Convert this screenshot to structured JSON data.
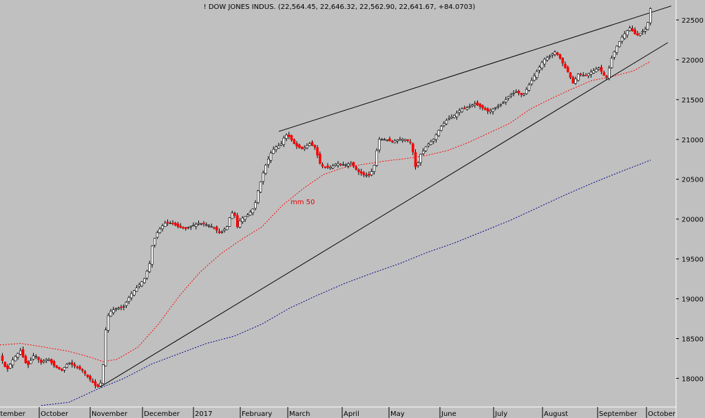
{
  "title": "! DOW JONES INDUS. (22,564.45, 22,646.32, 22,562.90, 22,641.67, +84.0703)",
  "colors": {
    "background": "#c0c0c0",
    "up_candle": "#ffffff",
    "down_candle": "#ff0000",
    "ma50": "#ff0000",
    "ma200": "#00008b",
    "trendline": "#000000"
  },
  "chart_data": {
    "type": "candlestick",
    "title": "! DOW JONES INDUS. (22,564.45, 22,646.32, 22,562.90, 22,641.67, +84.0703)",
    "ylim": [
      17650,
      22750
    ],
    "y_ticks": [
      "22500",
      "22000",
      "21500",
      "21000",
      "20500",
      "20000",
      "19500",
      "19000",
      "18500",
      "18000"
    ],
    "month_labels": [
      "ptember",
      "October",
      "November",
      "December",
      "2017",
      "February",
      "March",
      "April",
      "May",
      "June",
      "July",
      "August",
      "September",
      "October"
    ],
    "grid": false,
    "series": [
      {
        "kind": "price",
        "points": [
          [
            0,
            18300
          ],
          [
            10,
            18100
          ],
          [
            20,
            18250
          ],
          [
            30,
            18350
          ],
          [
            40,
            18150
          ],
          [
            50,
            18300
          ],
          [
            60,
            18200
          ],
          [
            70,
            18250
          ],
          [
            80,
            18150
          ],
          [
            90,
            18100
          ],
          [
            100,
            18200
          ],
          [
            110,
            18150
          ],
          [
            120,
            18100
          ],
          [
            130,
            18000
          ],
          [
            140,
            17900
          ],
          [
            145,
            17890
          ],
          [
            148,
            18000
          ],
          [
            150,
            18150
          ],
          [
            152,
            18450
          ],
          [
            155,
            18700
          ],
          [
            158,
            18800
          ],
          [
            162,
            18850
          ],
          [
            170,
            18880
          ],
          [
            180,
            18900
          ],
          [
            190,
            19050
          ],
          [
            200,
            19150
          ],
          [
            210,
            19250
          ],
          [
            218,
            19450
          ],
          [
            222,
            19700
          ],
          [
            230,
            19850
          ],
          [
            235,
            19900
          ],
          [
            240,
            19950
          ],
          [
            250,
            19950
          ],
          [
            260,
            19900
          ],
          [
            270,
            19880
          ],
          [
            280,
            19920
          ],
          [
            290,
            19950
          ],
          [
            300,
            19930
          ],
          [
            310,
            19900
          ],
          [
            320,
            19820
          ],
          [
            330,
            19900
          ],
          [
            335,
            20050
          ],
          [
            340,
            20100
          ],
          [
            345,
            19900
          ],
          [
            350,
            20000
          ],
          [
            360,
            20050
          ],
          [
            370,
            20150
          ],
          [
            375,
            20350
          ],
          [
            380,
            20500
          ],
          [
            385,
            20650
          ],
          [
            390,
            20750
          ],
          [
            395,
            20850
          ],
          [
            400,
            20900
          ],
          [
            405,
            20920
          ],
          [
            410,
            20950
          ],
          [
            414,
            21050
          ],
          [
            418,
            21060
          ],
          [
            425,
            20980
          ],
          [
            430,
            20920
          ],
          [
            440,
            20880
          ],
          [
            450,
            20950
          ],
          [
            458,
            20900
          ],
          [
            465,
            20700
          ],
          [
            470,
            20650
          ],
          [
            480,
            20650
          ],
          [
            490,
            20700
          ],
          [
            500,
            20680
          ],
          [
            510,
            20700
          ],
          [
            520,
            20600
          ],
          [
            530,
            20550
          ],
          [
            538,
            20550
          ],
          [
            545,
            20700
          ],
          [
            550,
            21000
          ],
          [
            560,
            21000
          ],
          [
            570,
            20970
          ],
          [
            580,
            21000
          ],
          [
            590,
            21000
          ],
          [
            598,
            20950
          ],
          [
            605,
            20600
          ],
          [
            610,
            20800
          ],
          [
            615,
            20850
          ],
          [
            620,
            20920
          ],
          [
            630,
            21000
          ],
          [
            640,
            21150
          ],
          [
            650,
            21250
          ],
          [
            660,
            21300
          ],
          [
            670,
            21380
          ],
          [
            680,
            21400
          ],
          [
            690,
            21450
          ],
          [
            700,
            21400
          ],
          [
            710,
            21350
          ],
          [
            720,
            21400
          ],
          [
            730,
            21450
          ],
          [
            740,
            21550
          ],
          [
            750,
            21600
          ],
          [
            760,
            21550
          ],
          [
            770,
            21700
          ],
          [
            780,
            21850
          ],
          [
            790,
            22000
          ],
          [
            800,
            22050
          ],
          [
            806,
            22100
          ],
          [
            812,
            22050
          ],
          [
            818,
            21950
          ],
          [
            825,
            21850
          ],
          [
            833,
            21700
          ],
          [
            840,
            21820
          ],
          [
            850,
            21800
          ],
          [
            860,
            21850
          ],
          [
            870,
            21900
          ],
          [
            878,
            21800
          ],
          [
            882,
            21780
          ],
          [
            888,
            22000
          ],
          [
            895,
            22150
          ],
          [
            905,
            22300
          ],
          [
            915,
            22400
          ],
          [
            925,
            22300
          ],
          [
            933,
            22350
          ],
          [
            940,
            22400
          ],
          [
            945,
            22640
          ]
        ]
      },
      {
        "name": "mm 50",
        "kind": "moving_average",
        "points": [
          [
            0,
            18420
          ],
          [
            30,
            18440
          ],
          [
            60,
            18400
          ],
          [
            100,
            18340
          ],
          [
            130,
            18270
          ],
          [
            150,
            18210
          ],
          [
            170,
            18240
          ],
          [
            200,
            18390
          ],
          [
            230,
            18680
          ],
          [
            260,
            19030
          ],
          [
            290,
            19330
          ],
          [
            320,
            19560
          ],
          [
            350,
            19740
          ],
          [
            380,
            19900
          ],
          [
            410,
            20170
          ],
          [
            440,
            20380
          ],
          [
            470,
            20560
          ],
          [
            500,
            20650
          ],
          [
            530,
            20690
          ],
          [
            560,
            20730
          ],
          [
            590,
            20760
          ],
          [
            620,
            20800
          ],
          [
            650,
            20860
          ],
          [
            680,
            20960
          ],
          [
            710,
            21080
          ],
          [
            740,
            21200
          ],
          [
            770,
            21380
          ],
          [
            800,
            21510
          ],
          [
            830,
            21630
          ],
          [
            860,
            21740
          ],
          [
            890,
            21790
          ],
          [
            920,
            21860
          ],
          [
            945,
            21980
          ]
        ]
      },
      {
        "kind": "moving_average_long",
        "points": [
          [
            60,
            17660
          ],
          [
            100,
            17700
          ],
          [
            140,
            17860
          ],
          [
            180,
            18000
          ],
          [
            220,
            18180
          ],
          [
            260,
            18310
          ],
          [
            300,
            18440
          ],
          [
            340,
            18530
          ],
          [
            380,
            18680
          ],
          [
            420,
            18880
          ],
          [
            460,
            19040
          ],
          [
            500,
            19190
          ],
          [
            540,
            19320
          ],
          [
            580,
            19440
          ],
          [
            620,
            19580
          ],
          [
            660,
            19700
          ],
          [
            700,
            19840
          ],
          [
            740,
            19980
          ],
          [
            780,
            20140
          ],
          [
            820,
            20300
          ],
          [
            860,
            20450
          ],
          [
            900,
            20590
          ],
          [
            945,
            20740
          ]
        ]
      }
    ],
    "trendlines": [
      {
        "from": [
          405,
          21100
        ],
        "to": [
          975,
          22675
        ]
      },
      {
        "from": [
          145,
          17890
        ],
        "to": [
          970,
          22215
        ]
      }
    ],
    "annotations": [
      "mm 50"
    ]
  }
}
